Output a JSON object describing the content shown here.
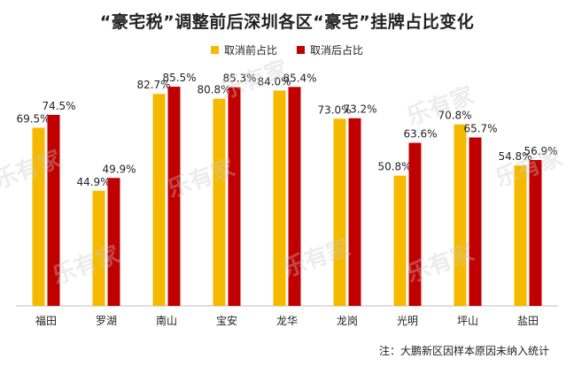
{
  "chart_data": {
    "type": "bar",
    "title": "“豪宅税”调整前后深圳各区“豪宅”挂牌占比变化",
    "categories": [
      "福田",
      "罗湖",
      "南山",
      "宝安",
      "龙华",
      "龙岗",
      "光明",
      "坪山",
      "盐田"
    ],
    "series": [
      {
        "name": "取消前占比",
        "color": "#F5BA00",
        "values": [
          69.5,
          44.9,
          82.7,
          80.8,
          84.0,
          73.0,
          50.8,
          70.8,
          54.8
        ],
        "labels": [
          "69.5%",
          "44.9%",
          "82.7%",
          "80.8%",
          "84.0%",
          "73.0%",
          "50.8%",
          "70.8%",
          "54.8%"
        ]
      },
      {
        "name": "取消后占比",
        "color": "#C00000",
        "values": [
          74.5,
          49.9,
          85.5,
          85.3,
          85.4,
          73.2,
          63.6,
          65.7,
          56.9
        ],
        "labels": [
          "74.5%",
          "49.9%",
          "85.5%",
          "85.3%",
          "85.4%",
          "73.2%",
          "63.6%",
          "65.7%",
          "56.9%"
        ]
      }
    ],
    "ylim": [
      0,
      100
    ],
    "grid": false,
    "legend_position": "top-center",
    "footnote": "注：大鹏新区因样本原因未纳入统计"
  },
  "watermark": {
    "text": "乐有家"
  }
}
